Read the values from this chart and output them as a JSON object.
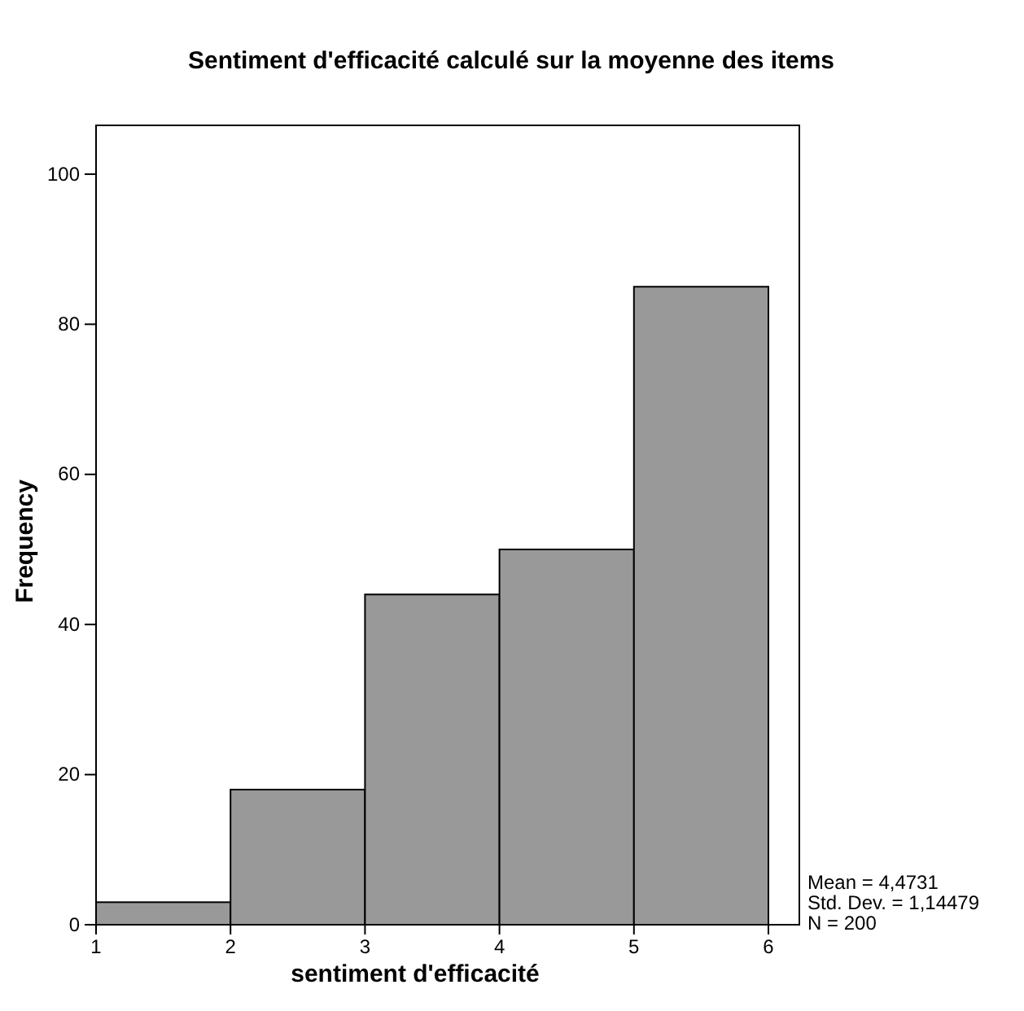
{
  "chart_data": {
    "type": "histogram",
    "title": "Sentiment d'efficacité calculé sur la moyenne des items",
    "xlabel": "sentiment d'efficacité",
    "ylabel": "Frequency",
    "bins": [
      1,
      2,
      3,
      4,
      5,
      6
    ],
    "values": [
      3,
      18,
      44,
      50,
      85
    ],
    "color": "#999999",
    "xlim": [
      1,
      6.23
    ],
    "xticks": [
      1,
      2,
      3,
      4,
      5,
      6
    ],
    "ylim": [
      0,
      106.5
    ],
    "yticks": [
      0,
      20,
      40,
      60,
      80,
      100
    ],
    "grid": false,
    "annotations": [
      "Mean = 4,4731",
      "Std. Dev. = 1,14479",
      "N = 200"
    ]
  }
}
